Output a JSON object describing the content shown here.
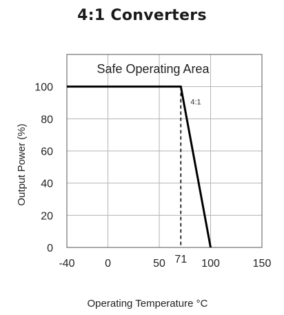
{
  "title": "4:1 Converters",
  "chart_data": {
    "type": "line",
    "title": "4:1 Converters",
    "region_label": "Safe Operating Area",
    "xlabel": "Operating Temperature °C",
    "ylabel": "Output Power (%)",
    "x_ticks": [
      "-40",
      "0",
      "50",
      "100",
      "150"
    ],
    "x_tick_values": [
      -40,
      0,
      50,
      100,
      150
    ],
    "y_ticks": [
      "0",
      "20",
      "40",
      "60",
      "80",
      "100"
    ],
    "y_tick_values": [
      0,
      20,
      40,
      60,
      80,
      100
    ],
    "xlim": [
      -40,
      150
    ],
    "ylim": [
      0,
      120
    ],
    "grid": true,
    "series": [
      {
        "name": "4:1",
        "x": [
          -40,
          71,
          100
        ],
        "y": [
          100,
          100,
          0
        ]
      }
    ],
    "marker": {
      "x": 71,
      "label": "71",
      "style": "dashed"
    },
    "colors": {
      "line": "#000000",
      "grid": "#b3b3b3",
      "frame": "#555555"
    }
  }
}
